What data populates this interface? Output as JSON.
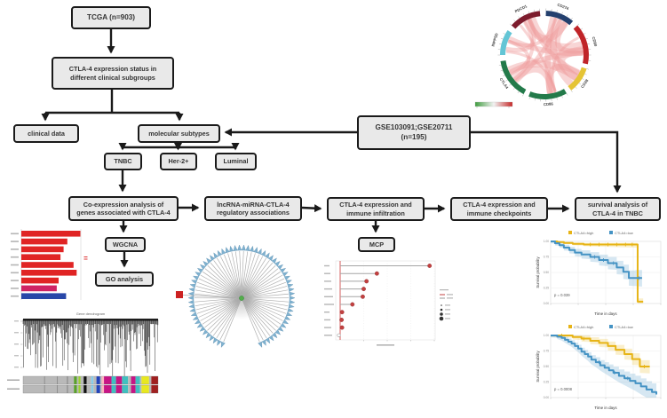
{
  "flowchart": {
    "nodes": {
      "tcga": "TCGA (n=903)",
      "status": "CTLA-4 expression status in\ndifferent clinical subgroups",
      "clinical": "clinical data",
      "subtypes": "molecular subtypes",
      "gse": "GSE103091;GSE20711\n(n=195)",
      "tnbc": "TNBC",
      "her2": "Her-2+",
      "luminal": "Luminal",
      "coexp": "Co-expression analysis of\ngenes associated with CTLA-4",
      "lnc": "lncRNA-miRNA-CTLA-4\nregulatory associations",
      "infiltration": "CTLA-4 expression and\nimmune infiltration",
      "checkpoints": "CTLA-4 expression and\nimmune checkpoints",
      "survival": "survival analysis of\nCTLA-4 in TNBC",
      "wgcna": "WGCNA",
      "go": "GO analysis",
      "mcp": "MCP"
    }
  },
  "chart_data": [
    {
      "type": "chord",
      "name": "immune-checkpoint-circos",
      "segments": [
        {
          "name": "PDCD1",
          "color": "#7d1c2d",
          "start": 312,
          "end": 354
        },
        {
          "name": "CD274",
          "color": "#24406e",
          "start": 2,
          "end": 40
        },
        {
          "name": "CD80",
          "color": "#c02428",
          "start": 48,
          "end": 102
        },
        {
          "name": "CD28",
          "color": "#e5c435",
          "start": 108,
          "end": 143
        },
        {
          "name": "CD86",
          "color": "#237a4a",
          "start": 150,
          "end": 201
        },
        {
          "name": "CTLA4",
          "color": "#237a4a",
          "start": 208,
          "end": 262
        },
        {
          "name": "INPP5D",
          "color": "#63c5d5",
          "start": 270,
          "end": 304
        }
      ],
      "ribbons": [
        [
          0,
          4
        ],
        [
          0,
          5
        ],
        [
          1,
          5
        ],
        [
          2,
          5
        ],
        [
          1,
          4
        ],
        [
          3,
          5
        ],
        [
          0,
          2
        ],
        [
          2,
          4
        ],
        [
          5,
          6
        ],
        [
          0,
          6
        ],
        [
          1,
          2
        ],
        [
          3,
          4
        ],
        [
          0,
          1
        ],
        [
          2,
          3
        ],
        [
          4,
          6
        ],
        [
          1,
          6
        ],
        [
          0,
          3
        ],
        [
          2,
          6
        ],
        [
          4,
          5
        ],
        [
          1,
          3
        ]
      ],
      "ribbon_color": "#ef9a9a",
      "legend_gradient": {
        "from": "#3f9c3f",
        "mid": "#f2f2f2",
        "to": "#c62828"
      }
    },
    {
      "type": "bar",
      "name": "go-enrichment-bars",
      "orientation": "horizontal",
      "values": [
        0.95,
        0.74,
        0.68,
        0.63,
        0.84,
        0.89,
        0.6,
        0.57,
        0.72
      ],
      "colors": [
        "#e02424",
        "#e02424",
        "#e02424",
        "#e02424",
        "#e02424",
        "#e02424",
        "#e02424",
        "#cf2364",
        "#2847a8"
      ]
    },
    {
      "type": "dendrogram",
      "name": "wgcna-gene-dendrogram",
      "title": "Gene dendrogram",
      "bars": [
        [
          "#b9b9b9",
          14
        ],
        [
          "#777777",
          0.6
        ],
        [
          "#b9b9b9",
          8
        ],
        [
          "#777777",
          0.6
        ],
        [
          "#b9b9b9",
          6
        ],
        [
          "#777777",
          0.6
        ],
        [
          "#b9b9b9",
          4
        ],
        [
          "#5aa02c",
          2
        ],
        [
          "#b9b9b9",
          1
        ],
        [
          "#9acd32",
          1.5
        ],
        [
          "#b9b9b9",
          2
        ],
        [
          "#111111",
          2
        ],
        [
          "#b9b9b9",
          3
        ],
        [
          "#87ceeb",
          1.5
        ],
        [
          "#b9b9b9",
          2
        ],
        [
          "#2244bb",
          2.5
        ],
        [
          "#b9b9b9",
          1
        ],
        [
          "#ffb6c1",
          1.5
        ],
        [
          "#c71585",
          5
        ],
        [
          "#40c0c0",
          3
        ],
        [
          "#c71585",
          4
        ],
        [
          "#40c0c0",
          4
        ],
        [
          "#b9b9b9",
          2
        ],
        [
          "#c71585",
          3
        ],
        [
          "#40c0c0",
          3
        ],
        [
          "#b9b9b9",
          1
        ],
        [
          "#e8e820",
          5
        ],
        [
          "#b9b9b9",
          1.5
        ],
        [
          "#a02020",
          4.5
        ]
      ]
    },
    {
      "type": "network",
      "name": "lncRNA-miRNA-ctla4-network",
      "hub_color": "#53ae4b",
      "leaf_color": "#7fb2d0",
      "leaf_stroke": "#4a7fa5",
      "leaf_count": 66,
      "gap_degrees": [
        160,
        200
      ],
      "special_node_color": "#cc2222",
      "edge_color": "#ababab"
    },
    {
      "type": "lollipop",
      "name": "mcp-immune-infiltration",
      "values": [
        0.95,
        0.39,
        0.28,
        0.25,
        0.24,
        0.13,
        0.02,
        0.015,
        0.02,
        0
      ],
      "dot_color": "#c34040",
      "stem_color": "#a5a5a5",
      "zero_line_color": "#cc3333"
    },
    {
      "type": "km",
      "name": "km-survival-1",
      "legend": [
        "CTLA4=high",
        "CTLA4=low"
      ],
      "colors": [
        "#e7b416",
        "#4593c4"
      ],
      "pvalue": "p = 0.039",
      "xlabel": "Time in days",
      "ylabel": "Survival probability",
      "yticks": [
        "1.00",
        "0.75",
        "0.50",
        "0.25",
        "0.00"
      ],
      "series": [
        {
          "name": "high",
          "band": [
            0.012,
            0.05
          ],
          "steps": [
            [
              0,
              1
            ],
            [
              0.06,
              1
            ],
            [
              0.06,
              0.99
            ],
            [
              0.12,
              0.99
            ],
            [
              0.12,
              0.975
            ],
            [
              0.2,
              0.975
            ],
            [
              0.2,
              0.96
            ],
            [
              0.3,
              0.96
            ],
            [
              0.3,
              0.95
            ],
            [
              0.79,
              0.95
            ],
            [
              0.79,
              0.03
            ],
            [
              0.84,
              0.03
            ]
          ],
          "censors": [
            0.36,
            0.44,
            0.52,
            0.6,
            0.68,
            0.74
          ]
        },
        {
          "name": "low",
          "band": [
            0.03,
            0.13
          ],
          "steps": [
            [
              0,
              1
            ],
            [
              0.04,
              1
            ],
            [
              0.04,
              0.97
            ],
            [
              0.08,
              0.97
            ],
            [
              0.08,
              0.94
            ],
            [
              0.12,
              0.94
            ],
            [
              0.12,
              0.9
            ],
            [
              0.17,
              0.9
            ],
            [
              0.17,
              0.86
            ],
            [
              0.22,
              0.86
            ],
            [
              0.22,
              0.82
            ],
            [
              0.28,
              0.82
            ],
            [
              0.28,
              0.79
            ],
            [
              0.36,
              0.79
            ],
            [
              0.36,
              0.75
            ],
            [
              0.44,
              0.75
            ],
            [
              0.44,
              0.7
            ],
            [
              0.52,
              0.7
            ],
            [
              0.52,
              0.65
            ],
            [
              0.6,
              0.65
            ],
            [
              0.6,
              0.58
            ],
            [
              0.66,
              0.58
            ],
            [
              0.66,
              0.51
            ],
            [
              0.71,
              0.51
            ],
            [
              0.71,
              0.41
            ],
            [
              0.77,
              0.41
            ],
            [
              0.83,
              0.41
            ]
          ],
          "censors": [
            0.4,
            0.48,
            0.57,
            0.8
          ]
        }
      ]
    },
    {
      "type": "km",
      "name": "km-survival-2",
      "legend": [
        "CTLA4=high",
        "CTLA4=low"
      ],
      "colors": [
        "#e7b416",
        "#4593c4"
      ],
      "pvalue": "p = 0.0008",
      "xlabel": "Time in days",
      "ylabel": "Survival probability",
      "yticks": [
        "1.00",
        "0.75",
        "0.50",
        "0.25",
        "0.00"
      ],
      "series": [
        {
          "name": "high",
          "band": [
            0.02,
            0.1
          ],
          "steps": [
            [
              0,
              1
            ],
            [
              0.2,
              1
            ],
            [
              0.2,
              0.975
            ],
            [
              0.28,
              0.975
            ],
            [
              0.28,
              0.95
            ],
            [
              0.36,
              0.95
            ],
            [
              0.36,
              0.915
            ],
            [
              0.44,
              0.915
            ],
            [
              0.44,
              0.88
            ],
            [
              0.52,
              0.88
            ],
            [
              0.52,
              0.83
            ],
            [
              0.59,
              0.83
            ],
            [
              0.59,
              0.77
            ],
            [
              0.67,
              0.77
            ],
            [
              0.67,
              0.7
            ],
            [
              0.74,
              0.7
            ],
            [
              0.74,
              0.62
            ],
            [
              0.81,
              0.62
            ],
            [
              0.81,
              0.5
            ],
            [
              0.9,
              0.5
            ]
          ],
          "censors": [
            0.1,
            0.3,
            0.85
          ]
        },
        {
          "name": "low",
          "band": [
            0.03,
            0.12
          ],
          "steps": [
            [
              0,
              1
            ],
            [
              0.06,
              1
            ],
            [
              0.06,
              0.98
            ],
            [
              0.1,
              0.96
            ],
            [
              0.13,
              0.93
            ],
            [
              0.16,
              0.9
            ],
            [
              0.19,
              0.87
            ],
            [
              0.22,
              0.83
            ],
            [
              0.25,
              0.79
            ],
            [
              0.28,
              0.74
            ],
            [
              0.31,
              0.7
            ],
            [
              0.34,
              0.66
            ],
            [
              0.37,
              0.61
            ],
            [
              0.41,
              0.57
            ],
            [
              0.45,
              0.52
            ],
            [
              0.49,
              0.48
            ],
            [
              0.53,
              0.44
            ],
            [
              0.57,
              0.4
            ],
            [
              0.62,
              0.35
            ],
            [
              0.67,
              0.31
            ],
            [
              0.72,
              0.27
            ],
            [
              0.77,
              0.23
            ],
            [
              0.82,
              0.18
            ],
            [
              0.87,
              0.13
            ],
            [
              0.92,
              0.09
            ],
            [
              0.96,
              0.05
            ]
          ],
          "censors": [
            0.44,
            0.58,
            0.7
          ]
        }
      ]
    }
  ]
}
